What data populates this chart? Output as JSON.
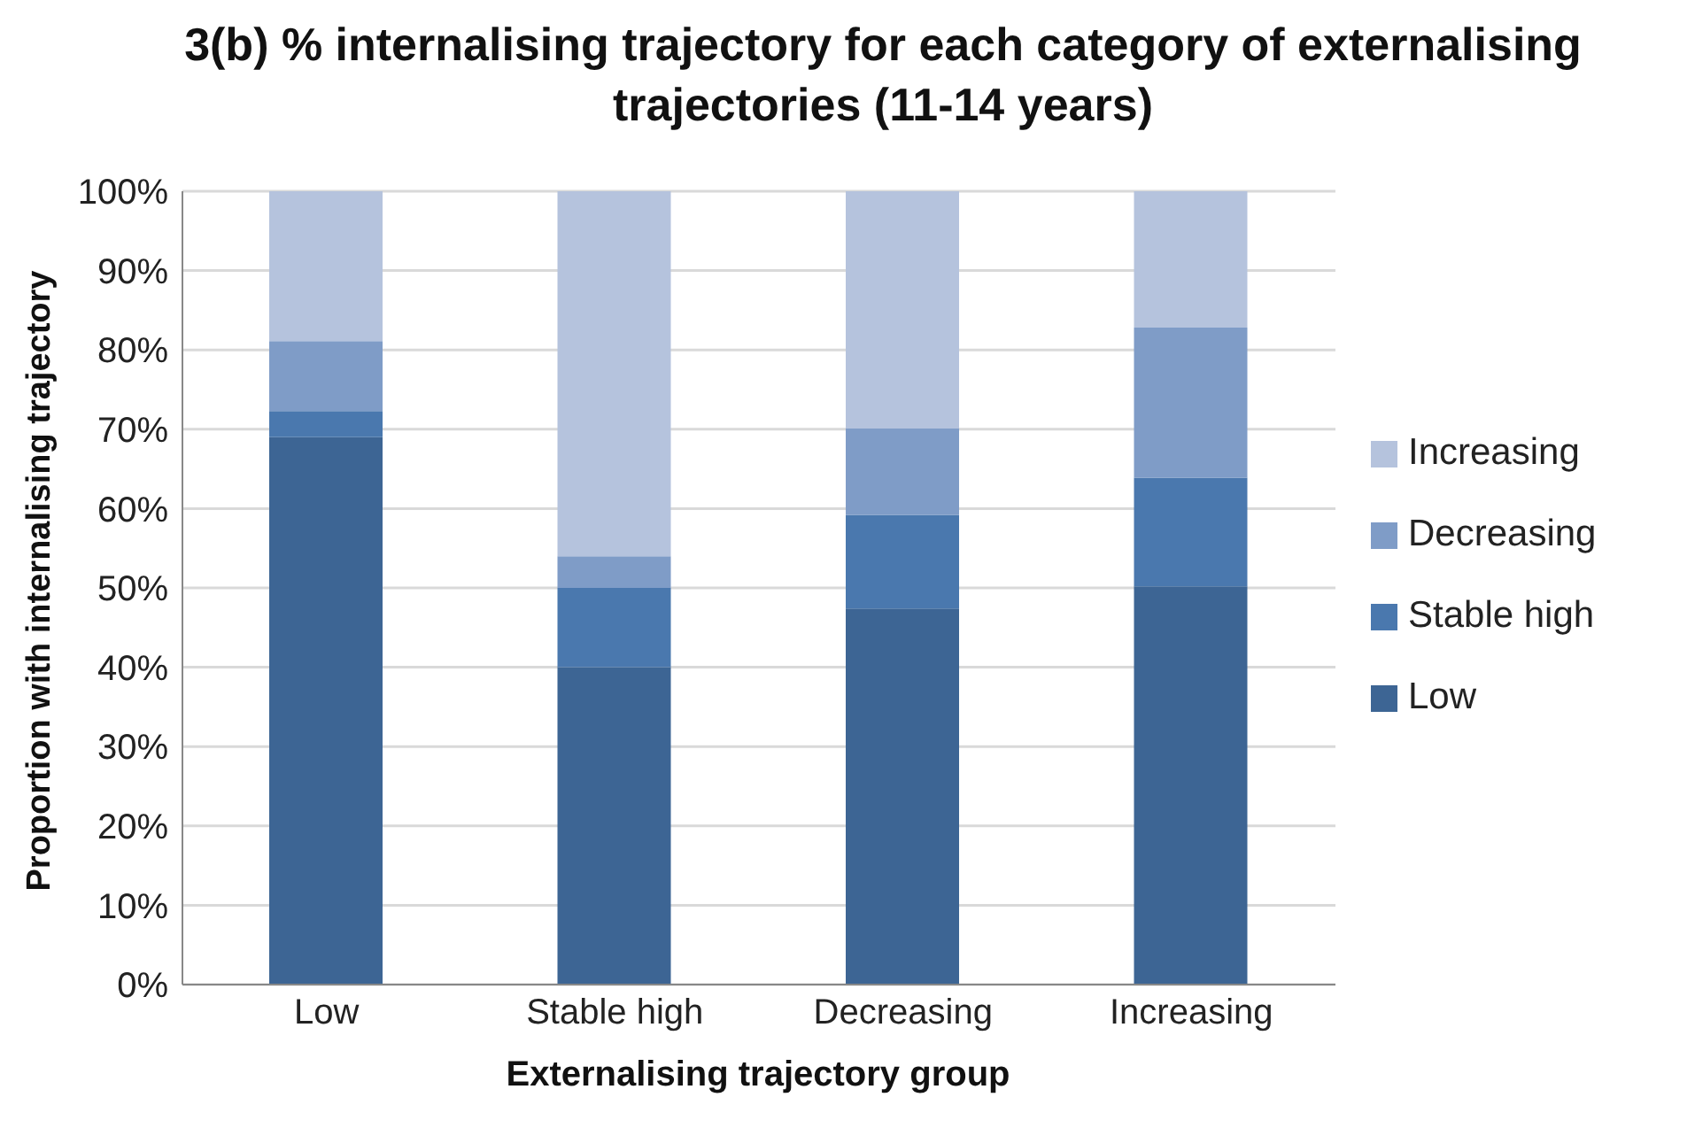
{
  "chart_data": {
    "type": "bar",
    "title": "3(b) % internalising trajectory for each category of externalising trajectories (11-14 years)",
    "xlabel": "Externalising trajectory group",
    "ylabel": "Proportion with internalising trajectory",
    "categories": [
      "Low",
      "Stable high",
      "Decreasing",
      "Increasing"
    ],
    "stacked": true,
    "series": [
      {
        "name": "Low",
        "color": "#3d6594",
        "values": [
          69,
          40,
          47.4,
          50.2
        ]
      },
      {
        "name": "Stable high",
        "color": "#4a78ae",
        "values": [
          3.3,
          10,
          11.8,
          13.7
        ]
      },
      {
        "name": "Decreasing",
        "color": "#7f9cc7",
        "values": [
          8.8,
          4,
          10.9,
          18.9
        ]
      },
      {
        "name": "Increasing",
        "color": "#b5c3dd",
        "values": [
          18.9,
          46,
          29.9,
          17.2
        ]
      }
    ],
    "ylim": [
      0,
      100
    ],
    "yticks": [
      {
        "value": 0,
        "label": "0%"
      },
      {
        "value": 10,
        "label": "10%"
      },
      {
        "value": 20,
        "label": "20%"
      },
      {
        "value": 30,
        "label": "30%"
      },
      {
        "value": 40,
        "label": "40%"
      },
      {
        "value": 50,
        "label": "50%"
      },
      {
        "value": 60,
        "label": "60%"
      },
      {
        "value": 70,
        "label": "70%"
      },
      {
        "value": 80,
        "label": "80%"
      },
      {
        "value": 90,
        "label": "90%"
      },
      {
        "value": 100,
        "label": "100%"
      }
    ],
    "grid": "y",
    "legend": "right"
  }
}
